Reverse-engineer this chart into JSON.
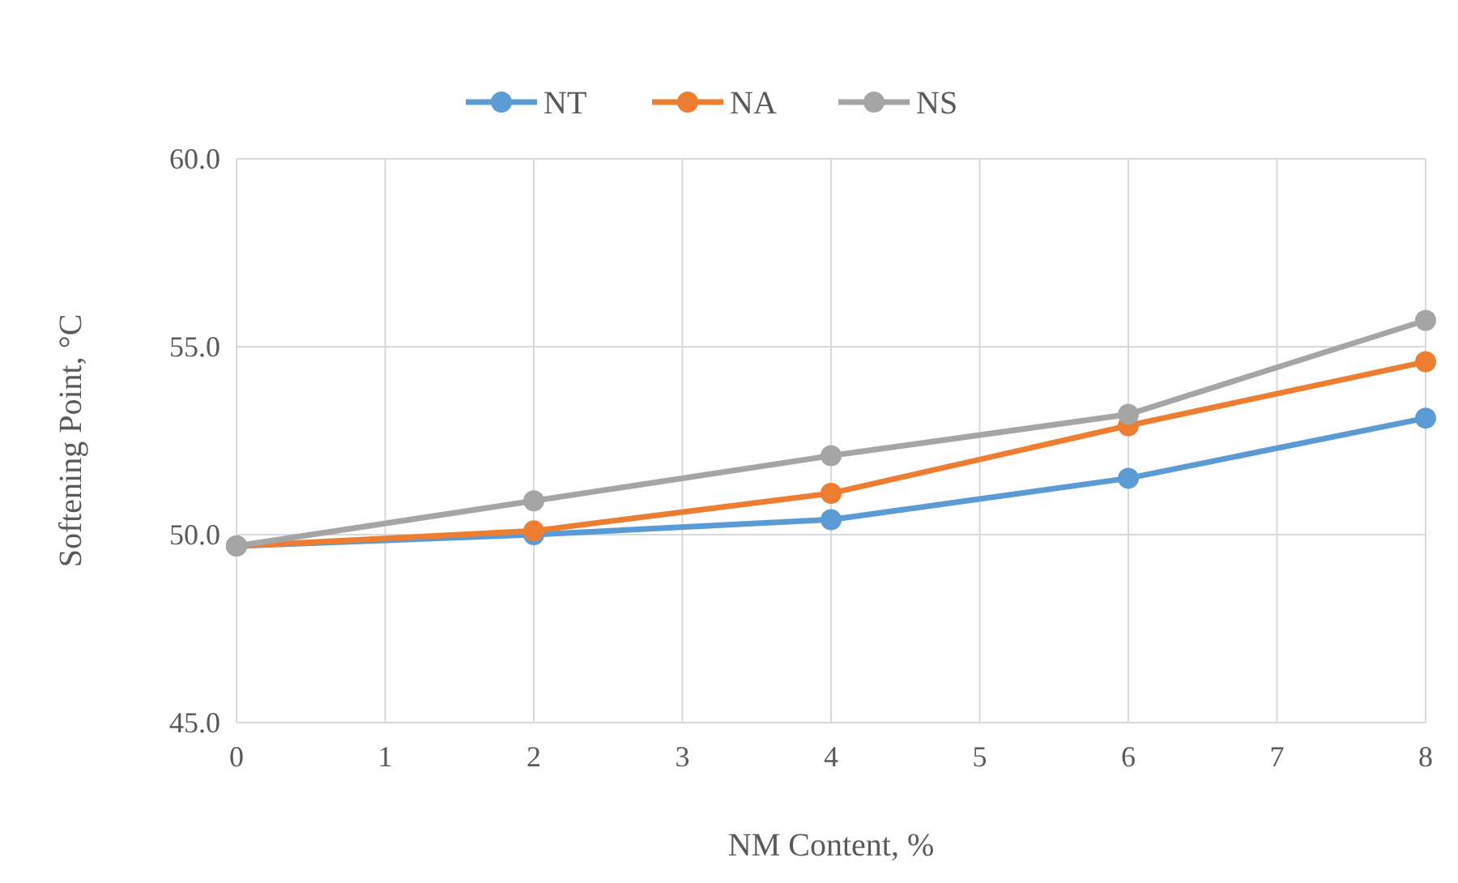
{
  "chart_data": {
    "type": "line",
    "xlabel": "NM Content, %",
    "ylabel": "Softening Point, °C",
    "x": [
      0,
      2,
      4,
      6,
      8
    ],
    "series": [
      {
        "name": "NT",
        "color": "#5b9bd5",
        "values": [
          49.7,
          50.0,
          50.4,
          51.5,
          53.1
        ]
      },
      {
        "name": "NA",
        "color": "#ed7d31",
        "values": [
          49.7,
          50.1,
          51.1,
          52.9,
          54.6
        ]
      },
      {
        "name": "NS",
        "color": "#a5a5a5",
        "values": [
          49.7,
          50.9,
          52.1,
          53.2,
          55.7
        ]
      }
    ],
    "xlim": [
      0,
      8
    ],
    "xticks": [
      0,
      1,
      2,
      3,
      4,
      5,
      6,
      7,
      8
    ],
    "ylim": [
      45,
      60
    ],
    "yticks": [
      {
        "value": 45,
        "label": "45.0"
      },
      {
        "value": 50,
        "label": "50.0"
      },
      {
        "value": 55,
        "label": "55.0"
      },
      {
        "value": 60,
        "label": "60.0"
      }
    ],
    "grid": true,
    "legend": "top",
    "marker": "circle",
    "line_style": "solid"
  }
}
